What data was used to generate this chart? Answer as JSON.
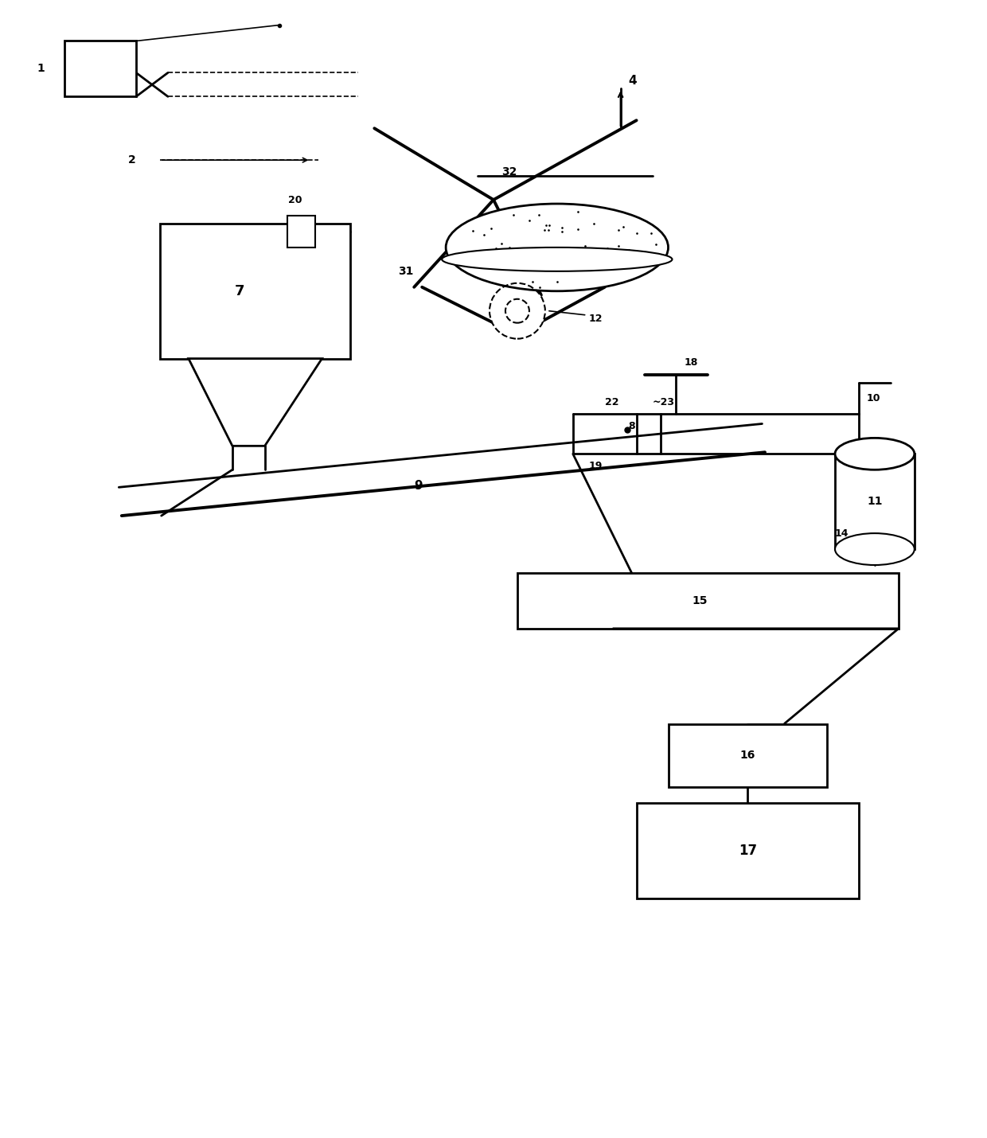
{
  "bg_color": "#ffffff",
  "line_color": "#000000",
  "fig_width": 12.4,
  "fig_height": 14.3,
  "dpi": 100
}
